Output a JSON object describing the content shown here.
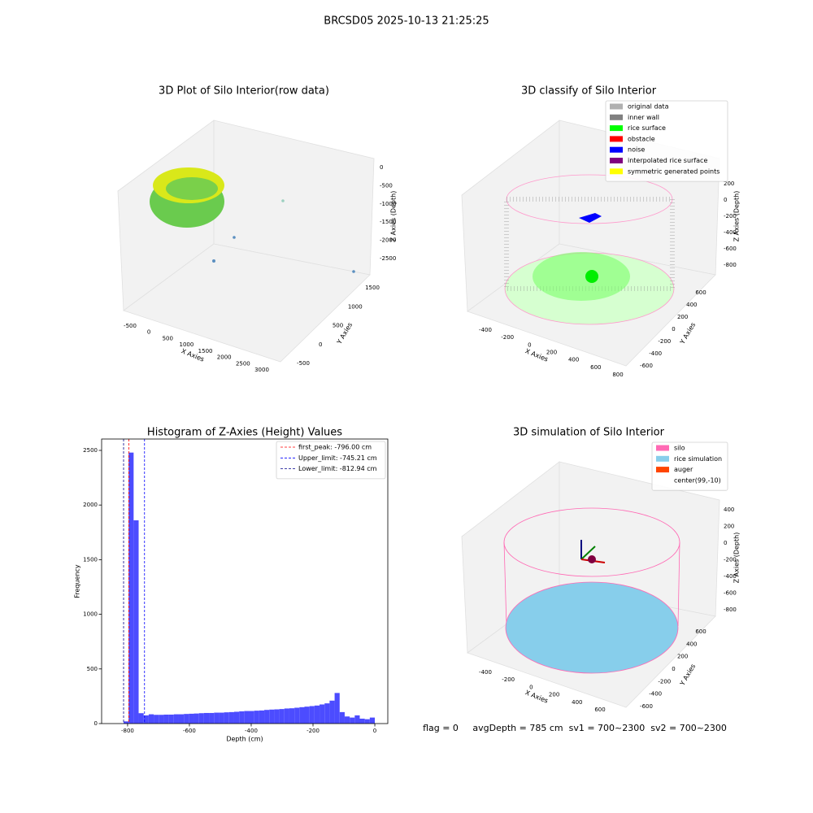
{
  "figure": {
    "title": "BRCSD05 2025-10-13 21:25:25",
    "footer": "flag = 0     avgDepth = 785 cm  sv1 = 700~2300  sv2 = 700~2300"
  },
  "chart_data": [
    {
      "type": "scatter3d",
      "title": "3D Plot of Silo Interior(row data)",
      "xlabel": "X Axies",
      "ylabel": "Y Axies",
      "zlabel": "Z Axies (Depth)",
      "xticks": [
        -500,
        0,
        500,
        1000,
        1500,
        2000,
        2500,
        3000
      ],
      "yticks": [
        -500,
        0,
        500,
        1000,
        1500
      ],
      "zticks": [
        0,
        -500,
        -1000,
        -1500,
        -2000,
        -2500
      ]
    },
    {
      "type": "scatter3d",
      "title": "3D classify of Silo Interior",
      "xlabel": "X Axies",
      "ylabel": "Y Axies",
      "zlabel": "Z Axies (Depth)",
      "xticks": [
        -400,
        -200,
        0,
        200,
        400,
        600,
        800
      ],
      "yticks": [
        -600,
        -400,
        -200,
        0,
        200,
        400,
        600
      ],
      "zticks": [
        200,
        0,
        -200,
        -400,
        -600,
        -800
      ],
      "legend": [
        {
          "name": "original data",
          "color": "#b0b0b0"
        },
        {
          "name": "inner wall",
          "color": "#808080"
        },
        {
          "name": "rice surface",
          "color": "#00ff00"
        },
        {
          "name": "obstacle",
          "color": "#ff0000"
        },
        {
          "name": "noise",
          "color": "#0000ff"
        },
        {
          "name": "interpolated rice surface",
          "color": "#800080"
        },
        {
          "name": "symmetric generated points",
          "color": "#ffff00"
        }
      ]
    },
    {
      "type": "histogram",
      "title": "Histogram of Z-Axies (Height) Values",
      "xlabel": "Depth (cm)",
      "ylabel": "Frequency",
      "color": "#4c4cff",
      "bins": [
        -813.0,
        -796.74,
        -780.48,
        -764.22,
        -747.96,
        -731.7,
        -715.44,
        -699.18,
        -682.92,
        -666.66,
        -650.4,
        -634.14,
        -617.88,
        -601.62,
        -585.36,
        -569.1,
        -552.84,
        -536.58,
        -520.32,
        -504.06,
        -487.8,
        -471.54,
        -455.28,
        -439.02,
        -422.76,
        -406.5,
        -390.24,
        -373.98,
        -357.72,
        -341.46,
        -325.2,
        -308.94,
        -292.68,
        -276.42,
        -260.16,
        -243.9,
        -227.64,
        -211.38,
        -195.12,
        -178.86,
        -162.6,
        -146.34,
        -130.08,
        -113.82,
        -97.56,
        -81.3,
        -65.04,
        -48.78,
        -32.52,
        -16.26,
        0
      ],
      "values": [
        20,
        2480,
        1860,
        95,
        75,
        85,
        80,
        80,
        82,
        82,
        85,
        85,
        88,
        90,
        92,
        95,
        97,
        97,
        100,
        100,
        103,
        105,
        108,
        112,
        115,
        115,
        118,
        120,
        125,
        128,
        130,
        133,
        138,
        140,
        145,
        150,
        155,
        160,
        165,
        175,
        185,
        210,
        280,
        105,
        65,
        55,
        75,
        45,
        40,
        55
      ],
      "xlim": [
        -884,
        42
      ],
      "ylim": [
        0,
        2604
      ],
      "xticks": [
        -800,
        -600,
        -400,
        -200,
        0
      ],
      "yticks": [
        0,
        500,
        1000,
        1500,
        2000,
        2500
      ],
      "lines": [
        {
          "name": "first_peak: -796.00 cm",
          "value": -796,
          "color": "#ff0000"
        },
        {
          "name": "Upper_limit: -745.21 cm",
          "value": -745.21,
          "color": "#0000ff"
        },
        {
          "name": "Lower_limit: -812.94 cm",
          "value": -812.94,
          "color": "#00008b"
        }
      ]
    },
    {
      "type": "surface3d",
      "title": "3D simulation of Silo Interior",
      "xlabel": "X Axies",
      "ylabel": "Y Axies",
      "zlabel": "Z Axies (Depth)",
      "xticks": [
        -400,
        -200,
        0,
        200,
        400,
        600
      ],
      "yticks": [
        -600,
        -400,
        -200,
        0,
        200,
        400,
        600
      ],
      "zticks": [
        400,
        200,
        0,
        -200,
        -400,
        -600,
        -800
      ],
      "legend": [
        {
          "name": "silo",
          "color": "#ff69b4"
        },
        {
          "name": "rice simulation",
          "color": "#87ceeb"
        },
        {
          "name": "auger",
          "color": "#ff4500"
        },
        {
          "name": "center(99,-10)",
          "color": "#ffffff"
        }
      ]
    }
  ]
}
